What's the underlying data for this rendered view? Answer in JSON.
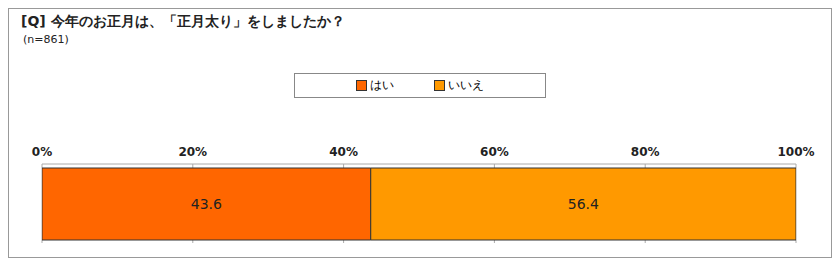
{
  "chart_data": {
    "type": "bar",
    "title": "[Q] 今年のお正月は、「正月太り」をしましたか？",
    "subtitle": "(n=861)",
    "orientation": "horizontal",
    "stacked": true,
    "categories": [
      null
    ],
    "series": [
      {
        "name": "はい",
        "color": "#ff6600",
        "values": [
          43.6
        ]
      },
      {
        "name": "いいえ",
        "color": "#ff9900",
        "values": [
          56.4
        ]
      }
    ],
    "xlim": [
      0,
      100
    ],
    "xticks": [
      {
        "value": 0,
        "label": "0%"
      },
      {
        "value": 20,
        "label": "20%"
      },
      {
        "value": 40,
        "label": "40%"
      },
      {
        "value": 60,
        "label": "60%"
      },
      {
        "value": 80,
        "label": "80%"
      },
      {
        "value": 100,
        "label": "100%"
      }
    ],
    "grid": true,
    "legend": "top",
    "data_labels": true
  }
}
